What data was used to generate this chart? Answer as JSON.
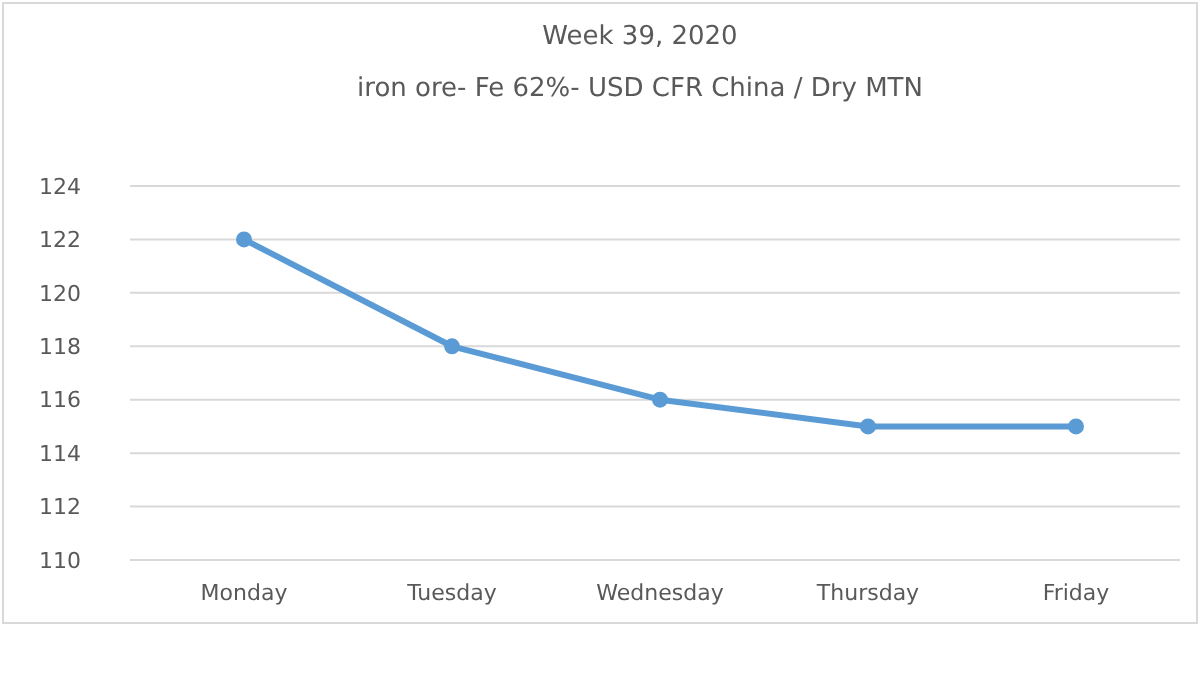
{
  "chart_data": {
    "type": "line",
    "title": "Week 39, 2020",
    "subtitle": "iron ore- Fe 62%- USD CFR China / Dry MTN",
    "categories": [
      "Monday",
      "Tuesday",
      "Wednesday",
      "Thursday",
      "Friday"
    ],
    "series": [
      {
        "color": "#5b9bd5",
        "values": [
          122,
          118,
          116,
          115,
          115
        ]
      }
    ],
    "ylim": [
      110,
      124
    ],
    "yticks": [
      110,
      112,
      114,
      116,
      118,
      120,
      122,
      124
    ],
    "grid": "y",
    "marker": "circle",
    "line_style": "solid"
  }
}
